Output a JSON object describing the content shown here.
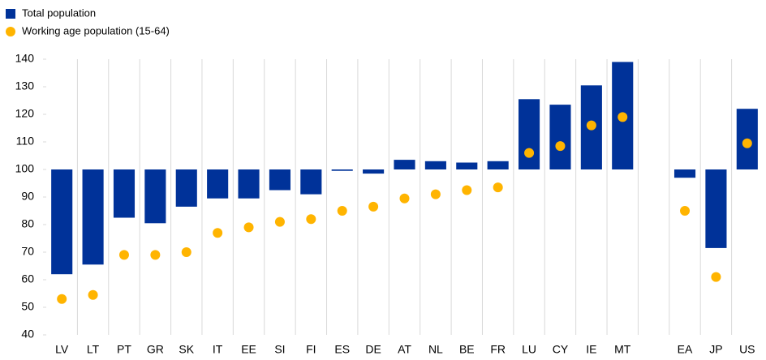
{
  "chart_data": {
    "type": "bar",
    "categories": [
      "LV",
      "LT",
      "PT",
      "GR",
      "SK",
      "IT",
      "EE",
      "SI",
      "FI",
      "ES",
      "DE",
      "AT",
      "NL",
      "BE",
      "FR",
      "LU",
      "CY",
      "IE",
      "MT",
      null,
      "EA",
      "JP",
      "US"
    ],
    "series": [
      {
        "name": "Total population",
        "color": "#003299",
        "type": "bar",
        "values": [
          62,
          65.5,
          82.5,
          80.5,
          86.5,
          89.5,
          89.5,
          92.5,
          91,
          99.5,
          98.5,
          103.5,
          103,
          102.5,
          103,
          125.5,
          123.5,
          130.5,
          139,
          null,
          97,
          71.5,
          122
        ]
      },
      {
        "name": "Working age population (15-64)",
        "color": "#ffb400",
        "type": "scatter",
        "values": [
          53,
          54.5,
          69,
          69,
          70,
          77,
          79,
          81,
          82,
          85,
          86.5,
          89.5,
          91,
          92.5,
          93.5,
          106,
          108.5,
          116,
          119,
          null,
          85,
          61,
          109.5
        ]
      }
    ],
    "base": 100,
    "ylim": [
      40,
      140
    ],
    "yticks": [
      40,
      50,
      60,
      70,
      80,
      90,
      100,
      110,
      120,
      130,
      140
    ],
    "legend": "top-left"
  }
}
